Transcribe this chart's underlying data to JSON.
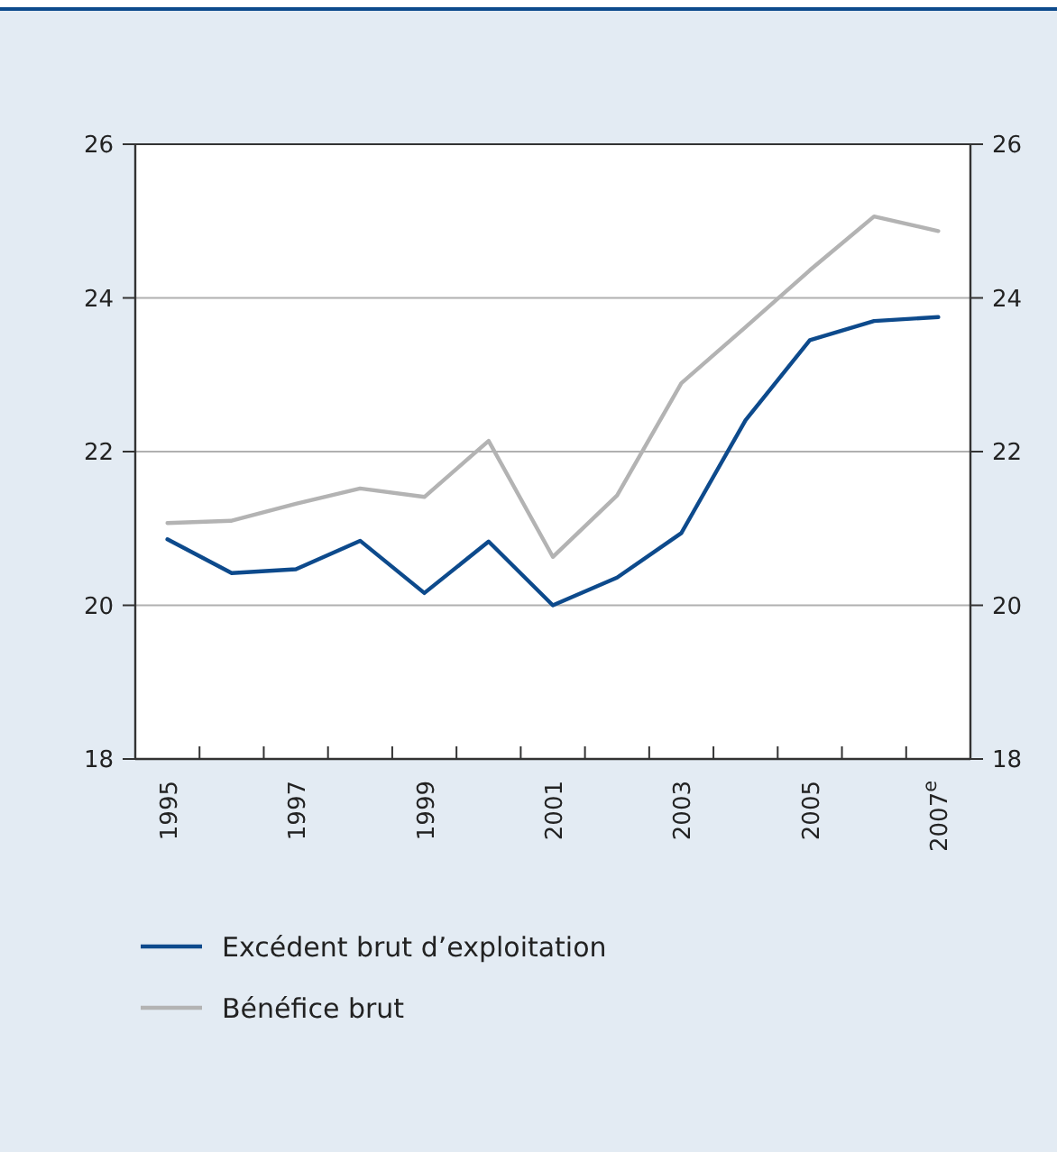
{
  "chart_data": {
    "type": "line",
    "categories": [
      "1995",
      null,
      "1997",
      null,
      "1999",
      null,
      "2001",
      null,
      "2003",
      null,
      "2005",
      null,
      "2007$^{e}$"
    ],
    "series": [
      {
        "name": "Excédent brut d’exploitation",
        "color": "#0d4a8c",
        "values": [
          20.86,
          20.42,
          20.47,
          20.84,
          20.16,
          20.83,
          20.0,
          20.36,
          20.94,
          22.41,
          23.45,
          23.7,
          23.75
        ]
      },
      {
        "name": "Bénéfice brut",
        "color": "#b3b3b3",
        "values": [
          21.07,
          21.1,
          21.32,
          21.52,
          21.41,
          22.14,
          20.63,
          21.43,
          22.89,
          23.62,
          24.36,
          25.06,
          24.87
        ]
      }
    ],
    "ylim": [
      18,
      26
    ],
    "yticks": [
      18,
      20,
      22,
      24,
      26
    ],
    "y2lim": [
      18,
      26
    ],
    "y2ticks": [
      18,
      20,
      22,
      24,
      26
    ],
    "grid": "y",
    "legend": "bottom",
    "marker": "none",
    "line_style": "solid"
  }
}
